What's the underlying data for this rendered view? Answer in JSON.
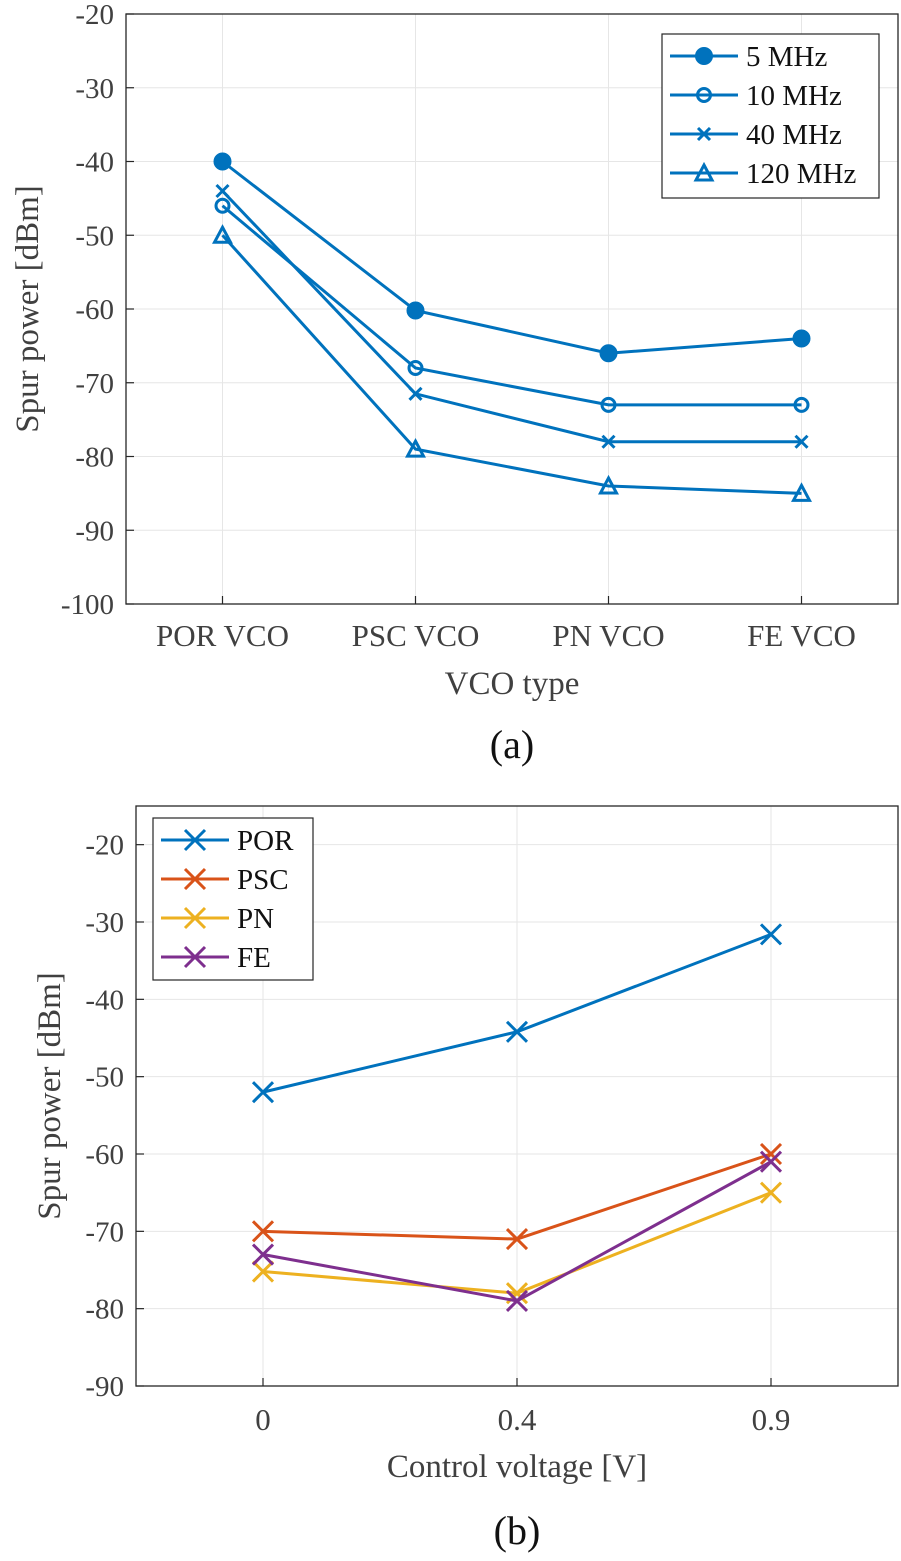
{
  "chart_data": [
    {
      "type": "line",
      "panel_label": "(a)",
      "xlabel": "VCO type",
      "ylabel": "Spur power [dBm]",
      "categories": [
        "POR VCO",
        "PSC VCO",
        "PN VCO",
        "FE VCO"
      ],
      "ylim": [
        -100,
        -20
      ],
      "yticks": [
        -20,
        -30,
        -40,
        -50,
        -60,
        -70,
        -80,
        -90,
        -100
      ],
      "grid": true,
      "legend_position": "top-right",
      "series": [
        {
          "name": "5 MHz",
          "marker": "filled-circle",
          "color": "#0072BD",
          "values": [
            -40,
            -60.2,
            -66,
            -64
          ]
        },
        {
          "name": "10 MHz",
          "marker": "open-circle",
          "color": "#0072BD",
          "values": [
            -46,
            -68,
            -73,
            -73
          ]
        },
        {
          "name": "40 MHz",
          "marker": "x",
          "color": "#0072BD",
          "values": [
            -44,
            -71.5,
            -78,
            -78
          ]
        },
        {
          "name": "120 MHz",
          "marker": "triangle",
          "color": "#0072BD",
          "values": [
            -50,
            -79,
            -84,
            -85
          ]
        }
      ]
    },
    {
      "type": "line",
      "panel_label": "(b)",
      "xlabel": "Control voltage [V]",
      "ylabel": "Spur power [dBm]",
      "categories": [
        "0",
        "0.4",
        "0.9"
      ],
      "ylim": [
        -90,
        -15
      ],
      "yticks": [
        -20,
        -30,
        -40,
        -50,
        -60,
        -70,
        -80,
        -90
      ],
      "grid": true,
      "legend_position": "top-left",
      "series": [
        {
          "name": "POR",
          "marker": "x",
          "color": "#0072BD",
          "values": [
            -52,
            -44.2,
            -31.6
          ]
        },
        {
          "name": "PSC",
          "marker": "x",
          "color": "#D95319",
          "values": [
            -70,
            -71,
            -60
          ]
        },
        {
          "name": "PN",
          "marker": "x",
          "color": "#EDB120",
          "values": [
            -75.2,
            -78,
            -65
          ]
        },
        {
          "name": "FE",
          "marker": "x",
          "color": "#7E2F8E",
          "values": [
            -73,
            -79,
            -61
          ]
        }
      ]
    }
  ]
}
